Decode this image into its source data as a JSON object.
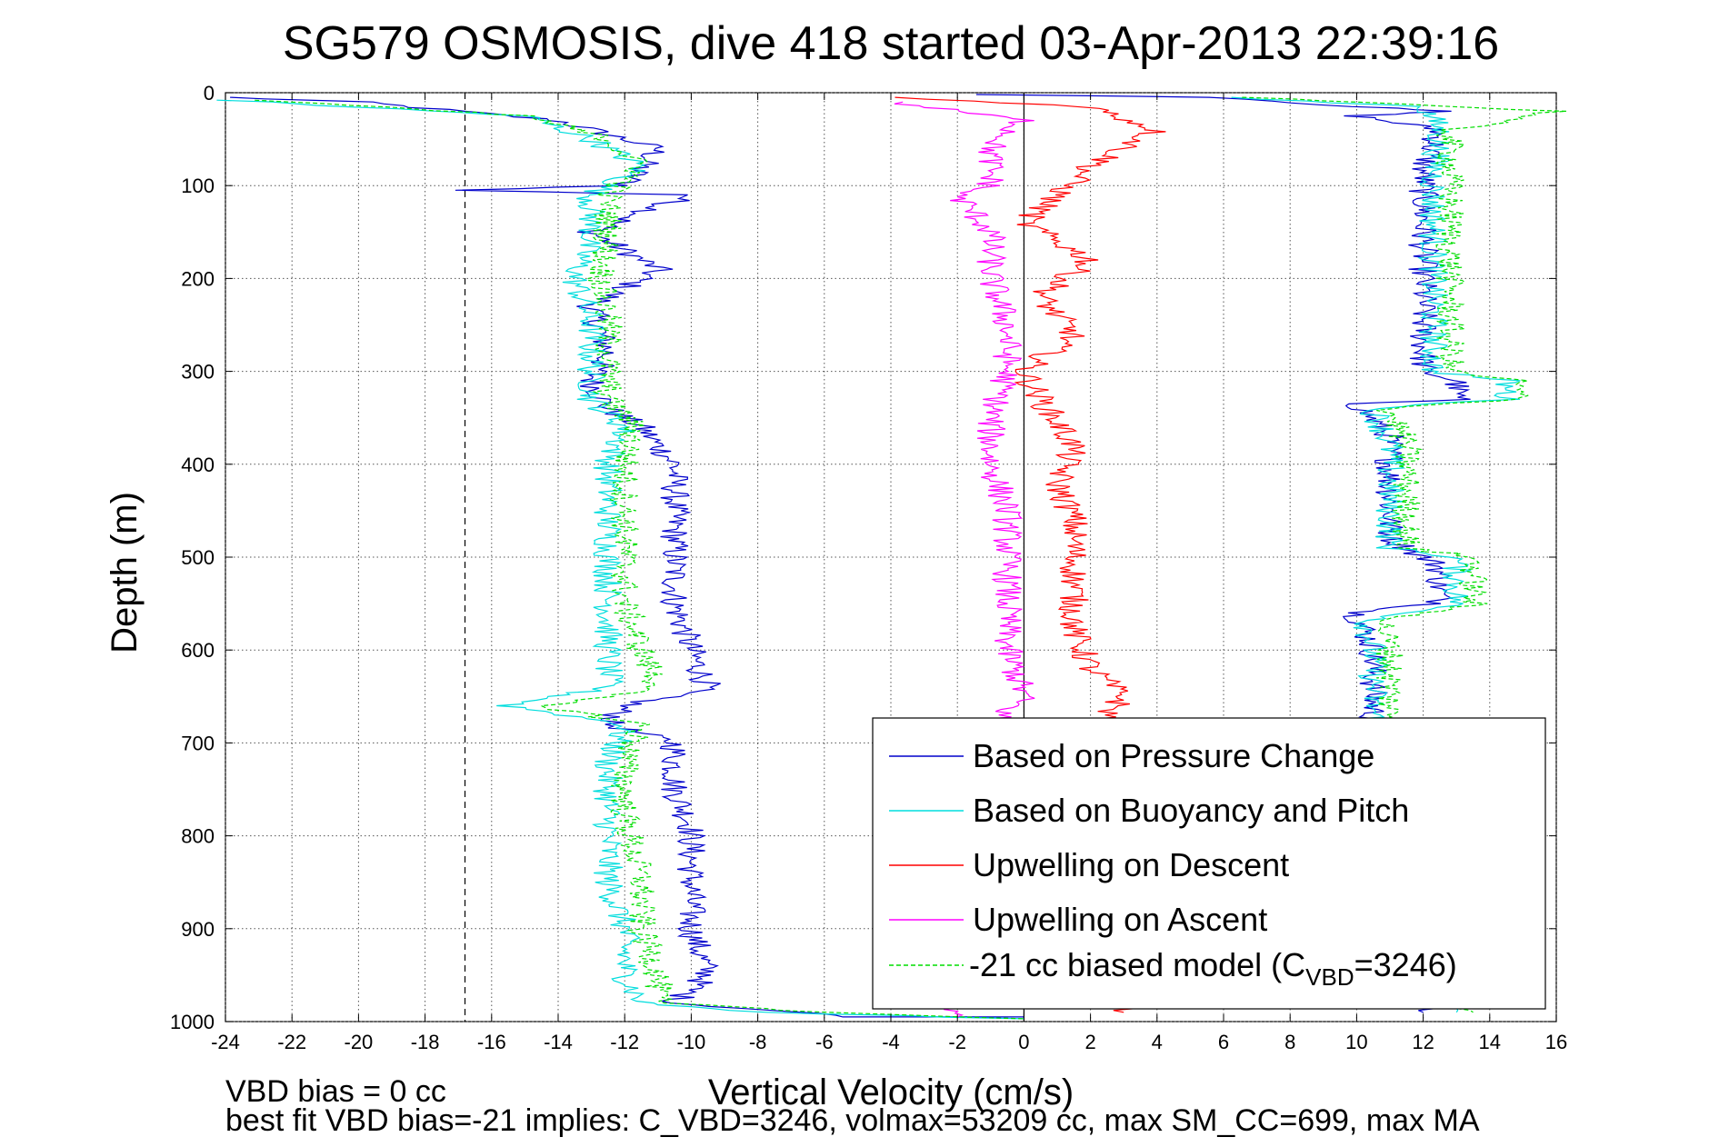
{
  "chart_data": {
    "type": "line",
    "title": "SG579 OSMOSIS, dive 418 started 03-Apr-2013 22:39:16",
    "xlabel": "Vertical Velocity (cm/s)",
    "ylabel": "Depth (m)",
    "xlim": [
      -24,
      16
    ],
    "ylim": [
      0,
      1000
    ],
    "y_reversed": true,
    "grid": true,
    "legend_position": "bottom-right",
    "x_ticks": [
      "-24",
      "-22",
      "-20",
      "-18",
      "-16",
      "-14",
      "-12",
      "-10",
      "-8",
      "-6",
      "-4",
      "-2",
      "0",
      "2",
      "4",
      "6",
      "8",
      "10",
      "12",
      "14",
      "16"
    ],
    "y_ticks": [
      "0",
      "100",
      "200",
      "300",
      "400",
      "500",
      "600",
      "700",
      "800",
      "900",
      "1000"
    ],
    "reference_lines": [
      {
        "type": "vertical-dashed",
        "x": -16.8
      },
      {
        "type": "vertical-solid",
        "x": 0
      }
    ],
    "series": [
      {
        "name": "Based on Pressure Change",
        "color": "#0000cc",
        "style": "solid",
        "points": [
          [
            [
              -24,
              5
            ],
            [
              -20,
              10
            ],
            [
              -14,
              30
            ],
            [
              -11,
              60
            ],
            [
              -12,
              100
            ],
            [
              -17,
              105
            ],
            [
              -10,
              110
            ],
            [
              -13,
              150
            ],
            [
              -11,
              190
            ],
            [
              -13,
              230
            ],
            [
              -12.5,
              280
            ],
            [
              -13,
              310
            ],
            [
              -12.5,
              340
            ],
            [
              -11.5,
              360
            ],
            [
              -10.5,
              400
            ],
            [
              -10.5,
              450
            ],
            [
              -10.5,
              500
            ],
            [
              -10.5,
              550
            ],
            [
              -10,
              600
            ],
            [
              -9.5,
              640
            ],
            [
              -12,
              660
            ],
            [
              -12.5,
              680
            ],
            [
              -10.5,
              700
            ],
            [
              -10.5,
              750
            ],
            [
              -10,
              790
            ],
            [
              -10,
              850
            ],
            [
              -10,
              900
            ],
            [
              -9.5,
              950
            ],
            [
              -10.5,
              980
            ],
            [
              -5,
              995
            ],
            [
              0,
              995
            ]
          ],
          [
            [
              -1,
              2
            ],
            [
              6,
              5
            ],
            [
              10,
              15
            ],
            [
              12.5,
              20
            ],
            [
              10,
              25
            ],
            [
              12.5,
              40
            ],
            [
              12,
              80
            ],
            [
              12,
              100
            ],
            [
              12,
              150
            ],
            [
              12,
              200
            ],
            [
              12,
              250
            ],
            [
              12,
              300
            ],
            [
              13,
              310
            ],
            [
              13,
              330
            ],
            [
              10,
              335
            ],
            [
              11,
              370
            ],
            [
              11,
              400
            ],
            [
              11,
              450
            ],
            [
              11,
              480
            ],
            [
              12.5,
              510
            ],
            [
              12.5,
              550
            ],
            [
              10,
              560
            ],
            [
              10.5,
              600
            ],
            [
              10.5,
              640
            ],
            [
              10.5,
              670
            ],
            [
              12,
              990
            ]
          ]
        ]
      },
      {
        "name": "Based on Buoyancy and Pitch",
        "color": "#00dddd",
        "style": "solid",
        "points": [
          [
            [
              -24,
              8
            ],
            [
              -15,
              25
            ],
            [
              -13,
              50
            ],
            [
              -11.5,
              80
            ],
            [
              -13,
              110
            ],
            [
              -13,
              150
            ],
            [
              -13.5,
              200
            ],
            [
              -13,
              250
            ],
            [
              -13,
              300
            ],
            [
              -13,
              330
            ],
            [
              -12,
              360
            ],
            [
              -12.5,
              400
            ],
            [
              -12.5,
              450
            ],
            [
              -12.5,
              500
            ],
            [
              -12.5,
              550
            ],
            [
              -12.5,
              600
            ],
            [
              -12.5,
              640
            ],
            [
              -15.5,
              660
            ],
            [
              -12,
              680
            ],
            [
              -12.5,
              720
            ],
            [
              -12.5,
              780
            ],
            [
              -12.5,
              850
            ],
            [
              -12,
              900
            ],
            [
              -12,
              950
            ],
            [
              -11.5,
              980
            ],
            [
              -8,
              990
            ],
            [
              0,
              997
            ]
          ],
          [
            [
              6,
              5
            ],
            [
              12,
              15
            ],
            [
              12.5,
              40
            ],
            [
              12.3,
              100
            ],
            [
              12.3,
              150
            ],
            [
              12.3,
              200
            ],
            [
              12.3,
              250
            ],
            [
              12.3,
              300
            ],
            [
              14.5,
              310
            ],
            [
              14.5,
              330
            ],
            [
              10.5,
              340
            ],
            [
              11,
              380
            ],
            [
              11,
              420
            ],
            [
              11,
              460
            ],
            [
              11,
              490
            ],
            [
              13,
              500
            ],
            [
              13,
              550
            ],
            [
              10.3,
              570
            ],
            [
              10.5,
              600
            ],
            [
              10.5,
              640
            ],
            [
              10.5,
              670
            ],
            [
              13,
              990
            ]
          ]
        ]
      },
      {
        "name": "Upwelling on Descent",
        "color": "#ff0000",
        "style": "solid",
        "points": [
          [
            [
              -4,
              5
            ],
            [
              2,
              15
            ],
            [
              4,
              40
            ],
            [
              2,
              80
            ],
            [
              1,
              110
            ],
            [
              0,
              140
            ],
            [
              2,
              180
            ],
            [
              0.5,
              220
            ],
            [
              1.5,
              260
            ],
            [
              0,
              300
            ],
            [
              0.5,
              330
            ],
            [
              1.5,
              380
            ],
            [
              1,
              420
            ],
            [
              1.5,
              460
            ],
            [
              1.5,
              500
            ],
            [
              1.5,
              540
            ],
            [
              1.5,
              580
            ],
            [
              2,
              620
            ],
            [
              3,
              650
            ],
            [
              2.5,
              670
            ],
            [
              3,
              990
            ]
          ]
        ]
      },
      {
        "name": "Upwelling on Ascent",
        "color": "#ff00ff",
        "style": "solid",
        "points": [
          [
            [
              -4,
              10
            ],
            [
              0,
              30
            ],
            [
              -1,
              60
            ],
            [
              -1,
              100
            ],
            [
              -2,
              110
            ],
            [
              -1,
              150
            ],
            [
              -1,
              200
            ],
            [
              -0.5,
              250
            ],
            [
              -0.5,
              300
            ],
            [
              -1,
              350
            ],
            [
              -1,
              400
            ],
            [
              -0.5,
              450
            ],
            [
              -0.5,
              500
            ],
            [
              -0.5,
              550
            ],
            [
              -0.5,
              600
            ],
            [
              0,
              650
            ],
            [
              -1,
              680
            ],
            [
              -2,
              995
            ]
          ]
        ]
      },
      {
        "name": "-21 cc biased model (C_VBD=3246)",
        "color": "#00dd00",
        "style": "dashed",
        "points": [
          [
            [
              -23,
              8
            ],
            [
              -15,
              25
            ],
            [
              -12.5,
              50
            ],
            [
              -11.5,
              80
            ],
            [
              -12.5,
              110
            ],
            [
              -12.5,
              150
            ],
            [
              -12.7,
              200
            ],
            [
              -12.5,
              250
            ],
            [
              -12.5,
              300
            ],
            [
              -12.5,
              330
            ],
            [
              -11.7,
              360
            ],
            [
              -12,
              400
            ],
            [
              -12,
              450
            ],
            [
              -12,
              500
            ],
            [
              -12,
              550
            ],
            [
              -11.5,
              600
            ],
            [
              -11,
              640
            ],
            [
              -14.5,
              660
            ],
            [
              -11.5,
              680
            ],
            [
              -12,
              720
            ],
            [
              -12,
              780
            ],
            [
              -11.5,
              850
            ],
            [
              -11.5,
              900
            ],
            [
              -11,
              950
            ],
            [
              -11,
              980
            ],
            [
              -6,
              990
            ],
            [
              0,
              997
            ]
          ],
          [
            [
              7,
              5
            ],
            [
              16,
              20
            ],
            [
              12.8,
              40
            ],
            [
              12.8,
              100
            ],
            [
              12.8,
              150
            ],
            [
              12.8,
              200
            ],
            [
              12.8,
              250
            ],
            [
              12.8,
              300
            ],
            [
              14.8,
              310
            ],
            [
              14.8,
              330
            ],
            [
              11,
              340
            ],
            [
              11.5,
              380
            ],
            [
              11.5,
              420
            ],
            [
              11.5,
              460
            ],
            [
              11.5,
              490
            ],
            [
              13.5,
              500
            ],
            [
              13.5,
              550
            ],
            [
              10.8,
              570
            ],
            [
              11,
              600
            ],
            [
              11,
              640
            ],
            [
              11,
              670
            ],
            [
              13.5,
              990
            ]
          ]
        ]
      }
    ]
  },
  "legend": {
    "items": [
      {
        "label": "Based on Pressure Change",
        "color": "#0000cc",
        "dashed": false
      },
      {
        "label": "Based on Buoyancy and Pitch",
        "color": "#00dddd",
        "dashed": false
      },
      {
        "label": "Upwelling on Descent",
        "color": "#ff0000",
        "dashed": false
      },
      {
        "label": "Upwelling on Ascent",
        "color": "#ff00ff",
        "dashed": false
      }
    ],
    "model_item": {
      "prefix": "-21 cc biased model (C",
      "subscript": "VBD",
      "suffix": "=3246)",
      "color": "#00dd00",
      "dashed": true
    }
  },
  "footer": {
    "line1": "VBD bias = 0 cc",
    "line2": "best fit VBD bias=-21 implies: C_VBD=3246, volmax=53209 cc, max SM_CC=699, max MA"
  }
}
